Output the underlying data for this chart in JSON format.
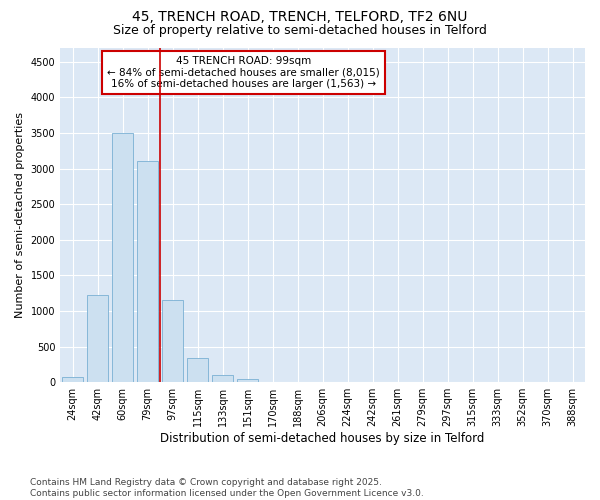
{
  "title1": "45, TRENCH ROAD, TRENCH, TELFORD, TF2 6NU",
  "title2": "Size of property relative to semi-detached houses in Telford",
  "xlabel": "Distribution of semi-detached houses by size in Telford",
  "ylabel": "Number of semi-detached properties",
  "categories": [
    "24sqm",
    "42sqm",
    "60sqm",
    "79sqm",
    "97sqm",
    "115sqm",
    "133sqm",
    "151sqm",
    "170sqm",
    "188sqm",
    "206sqm",
    "224sqm",
    "242sqm",
    "261sqm",
    "279sqm",
    "297sqm",
    "315sqm",
    "333sqm",
    "352sqm",
    "370sqm",
    "388sqm"
  ],
  "values": [
    80,
    1220,
    3500,
    3100,
    1150,
    340,
    100,
    45,
    0,
    0,
    0,
    0,
    0,
    0,
    0,
    0,
    0,
    0,
    0,
    0,
    0
  ],
  "bar_color": "#cce0f0",
  "bar_edge_color": "#7ab0d4",
  "vline_pos": 4.0,
  "vline_color": "#cc0000",
  "annotation_title": "45 TRENCH ROAD: 99sqm",
  "annotation_line1": "← 84% of semi-detached houses are smaller (8,015)",
  "annotation_line2": "16% of semi-detached houses are larger (1,563) →",
  "ylim": [
    0,
    4700
  ],
  "yticks": [
    0,
    500,
    1000,
    1500,
    2000,
    2500,
    3000,
    3500,
    4000,
    4500
  ],
  "footnote1": "Contains HM Land Registry data © Crown copyright and database right 2025.",
  "footnote2": "Contains public sector information licensed under the Open Government Licence v3.0.",
  "bg_color": "#ffffff",
  "plot_bg_color": "#dce8f5",
  "title1_fontsize": 10,
  "title2_fontsize": 9,
  "tick_fontsize": 7,
  "ylabel_fontsize": 8,
  "xlabel_fontsize": 8.5,
  "footnote_fontsize": 6.5
}
